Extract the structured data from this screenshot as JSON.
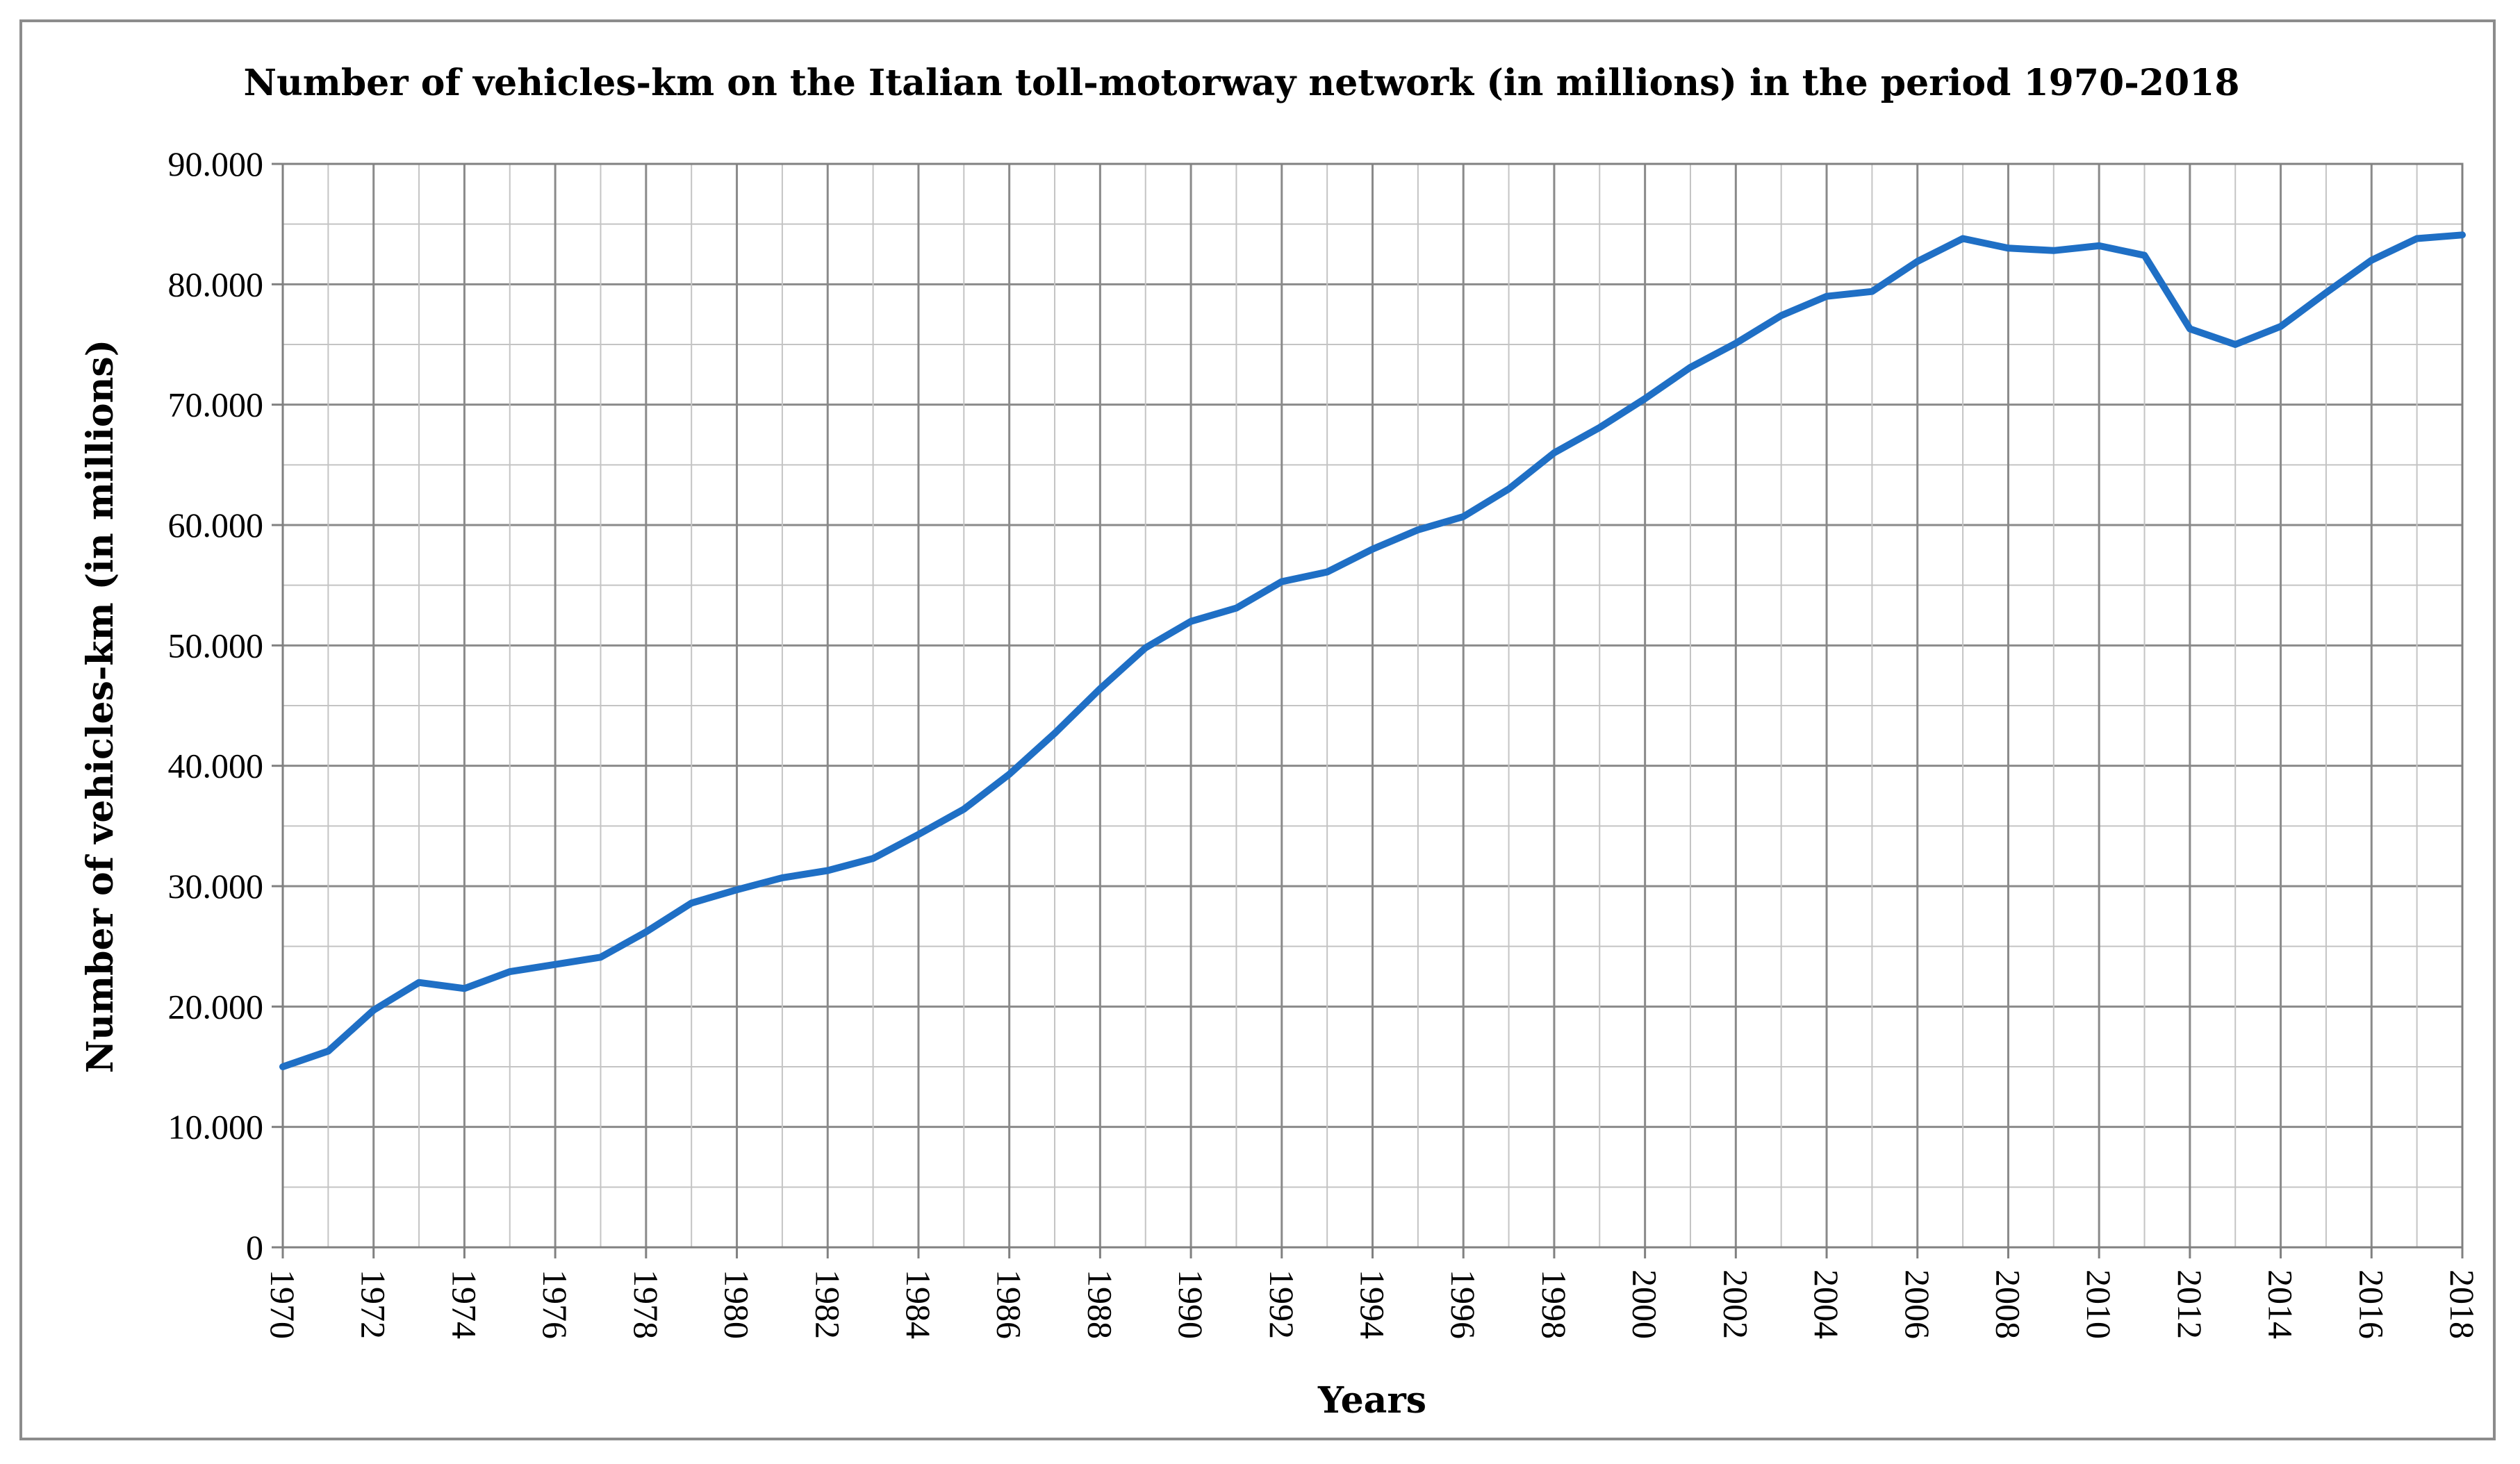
{
  "chart_data": {
    "type": "line",
    "title": "Number of vehicles-km on the Italian toll-motorway   network (in millions) in the period 1970-2018",
    "xlabel": "Years",
    "ylabel": "Number of vehicles-km (in millions)",
    "ylim": [
      0,
      90000
    ],
    "yticks": [
      0,
      10000,
      20000,
      30000,
      40000,
      50000,
      60000,
      70000,
      80000,
      90000
    ],
    "ytick_labels": [
      "0",
      "10.000",
      "20.000",
      "30.000",
      "40.000",
      "50.000",
      "60.000",
      "70.000",
      "80.000",
      "90.000"
    ],
    "xlim": [
      1970,
      2018
    ],
    "xtick_labels": [
      "1970",
      "1972",
      "1974",
      "1976",
      "1978",
      "1980",
      "1982",
      "1984",
      "1986",
      "1988",
      "1990",
      "1992",
      "1994",
      "1996",
      "1998",
      "2000",
      "2002",
      "2004",
      "2006",
      "2008",
      "2010",
      "2012",
      "2014",
      "2016",
      "2018"
    ],
    "grid": true,
    "line_color": "#1f6fc5",
    "x": [
      1970,
      1971,
      1972,
      1973,
      1974,
      1975,
      1976,
      1977,
      1978,
      1979,
      1980,
      1981,
      1982,
      1983,
      1984,
      1985,
      1986,
      1987,
      1988,
      1989,
      1990,
      1991,
      1992,
      1993,
      1994,
      1995,
      1996,
      1997,
      1998,
      1999,
      2000,
      2001,
      2002,
      2003,
      2004,
      2005,
      2006,
      2007,
      2008,
      2009,
      2010,
      2011,
      2012,
      2013,
      2014,
      2015,
      2016,
      2017,
      2018
    ],
    "values": [
      15000,
      16300,
      19700,
      22000,
      21500,
      22900,
      23500,
      24100,
      26200,
      28600,
      29700,
      30700,
      31300,
      32300,
      34300,
      36400,
      39300,
      42700,
      46400,
      49800,
      52000,
      53100,
      55300,
      56100,
      58000,
      59600,
      60700,
      63000,
      66000,
      68100,
      70500,
      73100,
      75100,
      77400,
      79000,
      79400,
      81900,
      83800,
      83000,
      82800,
      83200,
      82400,
      76300,
      75000,
      76500,
      79300,
      82000,
      83800,
      84100
    ]
  }
}
